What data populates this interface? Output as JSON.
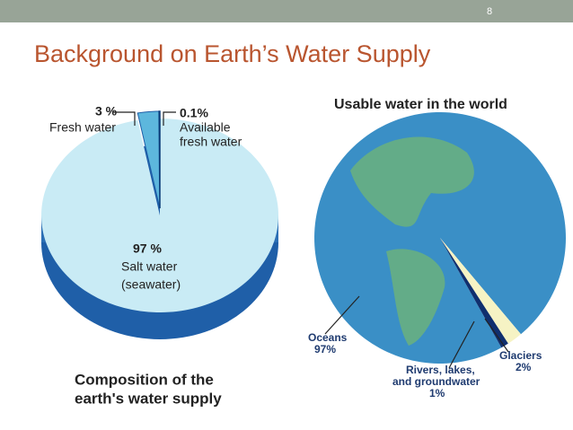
{
  "slide": {
    "number": "8",
    "title": "Background on Earth’s Water Supply"
  },
  "composition": {
    "caption_lines": [
      "Composition of the",
      "earth's water supply"
    ],
    "slices": [
      {
        "value": 97,
        "value_label": "97 %",
        "label_lines": [
          "Salt water",
          "(seawater)"
        ]
      },
      {
        "value": 3,
        "value_label": "3 %",
        "label_lines": [
          "Fresh water"
        ]
      },
      {
        "value": 0.1,
        "value_label": "0.1%",
        "label_lines": [
          "Available",
          "fresh water"
        ]
      }
    ]
  },
  "usable": {
    "title": "Usable water in the world",
    "slices": [
      {
        "value": 97,
        "value_label": "97%",
        "label_lines": [
          "Oceans"
        ]
      },
      {
        "value": 2,
        "value_label": "2%",
        "label_lines": [
          "Glaciers"
        ]
      },
      {
        "value": 1,
        "value_label": "1%",
        "label_lines": [
          "Rivers, lakes,",
          "and groundwater"
        ]
      }
    ]
  }
}
